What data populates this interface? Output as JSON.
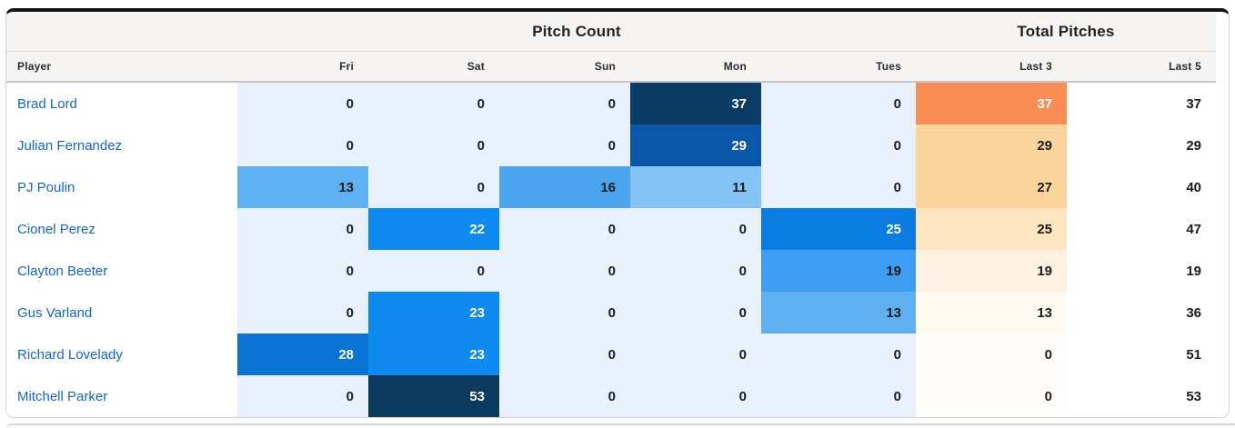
{
  "card": {
    "group_headers": {
      "pitch_count": "Pitch Count",
      "total_pitches": "Total Pitches"
    },
    "columns": {
      "player": "Player",
      "fri": "Fri",
      "sat": "Sat",
      "sun": "Sun",
      "mon": "Mon",
      "tues": "Tues",
      "last3": "Last 3",
      "last5": "Last 5"
    }
  },
  "palette": {
    "heat_blue_zero": "#e8f1fb",
    "heat_blue_low": "#85c2f5",
    "heat_blue_mid": "#0e8af0",
    "heat_blue_high": "#0a56a9",
    "heat_blue_max": "#0a3c66",
    "heat_orange_max": "#f98d55",
    "heat_orange_mid": "#fbd49d",
    "heat_orange_low": "#fdf2e2",
    "player_link": "#1467c8",
    "header_bg": "#f5f4f2",
    "card_top_border": "#161616"
  },
  "table": {
    "rows": [
      {
        "player": "Brad Lord",
        "cells": [
          {
            "v": "0",
            "bg": "#e8f1fb",
            "fg": "#1c1c1c"
          },
          {
            "v": "0",
            "bg": "#e8f1fb",
            "fg": "#1c1c1c"
          },
          {
            "v": "0",
            "bg": "#e8f1fb",
            "fg": "#1c1c1c"
          },
          {
            "v": "37",
            "bg": "#0a3c66",
            "fg": "#ffffff"
          },
          {
            "v": "0",
            "bg": "#e8f1fb",
            "fg": "#1c1c1c"
          },
          {
            "v": "37",
            "bg": "#f98d55",
            "fg": "#ffffff"
          },
          {
            "v": "37",
            "bg": "#ffffff",
            "fg": "#1c1c1c"
          }
        ]
      },
      {
        "player": "Julian Fernandez",
        "cells": [
          {
            "v": "0",
            "bg": "#e8f1fb",
            "fg": "#1c1c1c"
          },
          {
            "v": "0",
            "bg": "#e8f1fb",
            "fg": "#1c1c1c"
          },
          {
            "v": "0",
            "bg": "#e8f1fb",
            "fg": "#1c1c1c"
          },
          {
            "v": "29",
            "bg": "#0a56a9",
            "fg": "#ffffff"
          },
          {
            "v": "0",
            "bg": "#e8f1fb",
            "fg": "#1c1c1c"
          },
          {
            "v": "29",
            "bg": "#fbd49d",
            "fg": "#1c1c1c"
          },
          {
            "v": "29",
            "bg": "#ffffff",
            "fg": "#1c1c1c"
          }
        ]
      },
      {
        "player": "PJ Poulin",
        "cells": [
          {
            "v": "13",
            "bg": "#5fb0f0",
            "fg": "#1c1c1c"
          },
          {
            "v": "0",
            "bg": "#e8f1fb",
            "fg": "#1c1c1c"
          },
          {
            "v": "16",
            "bg": "#4aa4ee",
            "fg": "#1c1c1c"
          },
          {
            "v": "11",
            "bg": "#85c2f5",
            "fg": "#1c1c1c"
          },
          {
            "v": "0",
            "bg": "#e8f1fb",
            "fg": "#1c1c1c"
          },
          {
            "v": "27",
            "bg": "#fbd49d",
            "fg": "#1c1c1c"
          },
          {
            "v": "40",
            "bg": "#ffffff",
            "fg": "#1c1c1c"
          }
        ]
      },
      {
        "player": "Cionel Perez",
        "cells": [
          {
            "v": "0",
            "bg": "#e8f1fb",
            "fg": "#1c1c1c"
          },
          {
            "v": "22",
            "bg": "#0e8af0",
            "fg": "#ffffff"
          },
          {
            "v": "0",
            "bg": "#e8f1fb",
            "fg": "#1c1c1c"
          },
          {
            "v": "0",
            "bg": "#e8f1fb",
            "fg": "#1c1c1c"
          },
          {
            "v": "25",
            "bg": "#0b7de2",
            "fg": "#ffffff"
          },
          {
            "v": "25",
            "bg": "#fde5c1",
            "fg": "#1c1c1c"
          },
          {
            "v": "47",
            "bg": "#ffffff",
            "fg": "#1c1c1c"
          }
        ]
      },
      {
        "player": "Clayton Beeter",
        "cells": [
          {
            "v": "0",
            "bg": "#e8f1fb",
            "fg": "#1c1c1c"
          },
          {
            "v": "0",
            "bg": "#e8f1fb",
            "fg": "#1c1c1c"
          },
          {
            "v": "0",
            "bg": "#e8f1fb",
            "fg": "#1c1c1c"
          },
          {
            "v": "0",
            "bg": "#e8f1fb",
            "fg": "#1c1c1c"
          },
          {
            "v": "19",
            "bg": "#3c9df2",
            "fg": "#1c1c1c"
          },
          {
            "v": "19",
            "bg": "#fdf2e2",
            "fg": "#1c1c1c"
          },
          {
            "v": "19",
            "bg": "#ffffff",
            "fg": "#1c1c1c"
          }
        ]
      },
      {
        "player": "Gus Varland",
        "cells": [
          {
            "v": "0",
            "bg": "#e8f1fb",
            "fg": "#1c1c1c"
          },
          {
            "v": "23",
            "bg": "#0e8af0",
            "fg": "#ffffff"
          },
          {
            "v": "0",
            "bg": "#e8f1fb",
            "fg": "#1c1c1c"
          },
          {
            "v": "0",
            "bg": "#e8f1fb",
            "fg": "#1c1c1c"
          },
          {
            "v": "13",
            "bg": "#5fb0f0",
            "fg": "#1c1c1c"
          },
          {
            "v": "13",
            "bg": "#fefaf2",
            "fg": "#1c1c1c"
          },
          {
            "v": "36",
            "bg": "#ffffff",
            "fg": "#1c1c1c"
          }
        ]
      },
      {
        "player": "Richard Lovelady",
        "cells": [
          {
            "v": "28",
            "bg": "#0b73d3",
            "fg": "#ffffff"
          },
          {
            "v": "23",
            "bg": "#0e8af0",
            "fg": "#ffffff"
          },
          {
            "v": "0",
            "bg": "#e8f1fb",
            "fg": "#1c1c1c"
          },
          {
            "v": "0",
            "bg": "#e8f1fb",
            "fg": "#1c1c1c"
          },
          {
            "v": "0",
            "bg": "#e8f1fb",
            "fg": "#1c1c1c"
          },
          {
            "v": "0",
            "bg": "#fffdf9",
            "fg": "#1c1c1c"
          },
          {
            "v": "51",
            "bg": "#ffffff",
            "fg": "#1c1c1c"
          }
        ]
      },
      {
        "player": "Mitchell Parker",
        "cells": [
          {
            "v": "0",
            "bg": "#e8f1fb",
            "fg": "#1c1c1c"
          },
          {
            "v": "53",
            "bg": "#0c3a5e",
            "fg": "#ffffff"
          },
          {
            "v": "0",
            "bg": "#e8f1fb",
            "fg": "#1c1c1c"
          },
          {
            "v": "0",
            "bg": "#e8f1fb",
            "fg": "#1c1c1c"
          },
          {
            "v": "0",
            "bg": "#e8f1fb",
            "fg": "#1c1c1c"
          },
          {
            "v": "0",
            "bg": "#fffdf9",
            "fg": "#1c1c1c"
          },
          {
            "v": "53",
            "bg": "#ffffff",
            "fg": "#1c1c1c"
          }
        ]
      }
    ]
  },
  "chart_data": {
    "type": "heatmap",
    "title": "Pitch Count",
    "title2": "Total Pitches",
    "columns": [
      "Fri",
      "Sat",
      "Sun",
      "Mon",
      "Tues",
      "Last 3",
      "Last 5"
    ],
    "rows": [
      "Brad Lord",
      "Julian Fernandez",
      "PJ Poulin",
      "Cionel Perez",
      "Clayton Beeter",
      "Gus Varland",
      "Richard Lovelady",
      "Mitchell Parker"
    ],
    "values": [
      [
        0,
        0,
        0,
        37,
        0,
        37,
        37
      ],
      [
        0,
        0,
        0,
        29,
        0,
        29,
        29
      ],
      [
        13,
        0,
        16,
        11,
        0,
        27,
        40
      ],
      [
        0,
        22,
        0,
        0,
        25,
        25,
        47
      ],
      [
        0,
        0,
        0,
        0,
        19,
        19,
        19
      ],
      [
        0,
        23,
        0,
        0,
        13,
        13,
        36
      ],
      [
        28,
        23,
        0,
        0,
        0,
        0,
        51
      ],
      [
        0,
        53,
        0,
        0,
        0,
        0,
        53
      ]
    ]
  }
}
